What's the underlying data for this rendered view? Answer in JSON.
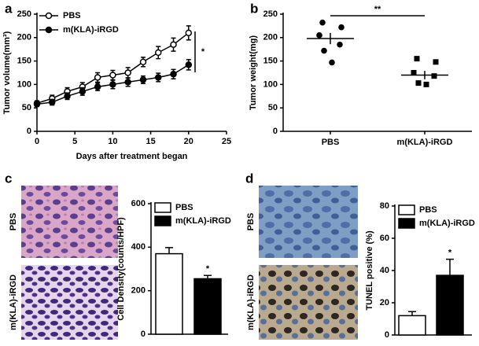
{
  "chart_data": [
    {
      "type": "line",
      "panel": "a",
      "xlabel": "Days after treatment began",
      "ylabel": "Tumor volume(mm³)",
      "x": [
        0,
        2,
        4,
        6,
        8,
        10,
        12,
        14,
        16,
        18,
        20
      ],
      "series": [
        {
          "name": "PBS",
          "color": "#000000",
          "marker": "open",
          "values": [
            60,
            70,
            85,
            95,
            115,
            120,
            125,
            148,
            168,
            185,
            210
          ],
          "errors": [
            5,
            7,
            8,
            9,
            10,
            10,
            11,
            10,
            13,
            14,
            15
          ]
        },
        {
          "name": "m(KLA)-iRGD",
          "color": "#000000",
          "marker": "filled",
          "values": [
            58,
            62,
            75,
            85,
            95,
            100,
            105,
            110,
            115,
            122,
            142
          ],
          "errors": [
            5,
            6,
            7,
            8,
            8,
            9,
            9,
            8,
            9,
            10,
            11
          ]
        }
      ],
      "xlim": [
        0,
        25
      ],
      "xticks": [
        0,
        5,
        10,
        15,
        20,
        25
      ],
      "ylim": [
        0,
        250
      ],
      "yticks": [
        0,
        50,
        100,
        150,
        200,
        250
      ],
      "annotation": "*"
    },
    {
      "type": "dot",
      "panel": "b",
      "ylabel": "Tumor weight(mg)",
      "categories": [
        "PBS",
        "m(KLA)-iRGD"
      ],
      "points": [
        [
          232,
          222,
          205,
          185,
          172,
          147
        ],
        [
          155,
          148,
          125,
          118,
          103,
          100
        ]
      ],
      "markers": [
        "circle",
        "square"
      ],
      "means": [
        198,
        120
      ],
      "errors": [
        12,
        9
      ],
      "ylim": [
        0,
        250
      ],
      "yticks": [
        0,
        50,
        100,
        150,
        200,
        250
      ],
      "annotation": "**"
    },
    {
      "type": "bar",
      "panel": "c",
      "ylabel": "Cell Density(counts/HPF)",
      "image_labels": [
        "PBS",
        "m(KLA)-iRGD"
      ],
      "series": [
        {
          "name": "PBS",
          "color": "#ffffff",
          "values": [
            370
          ],
          "errors": [
            28
          ]
        },
        {
          "name": "m(KLA)-iRGD",
          "color": "#000000",
          "values": [
            255
          ],
          "errors": [
            15
          ]
        }
      ],
      "ylim": [
        0,
        600
      ],
      "yticks": [
        0,
        200,
        400,
        600
      ],
      "annotation": "*"
    },
    {
      "type": "bar",
      "panel": "d",
      "ylabel": "TUNEL positive (%)",
      "image_labels": [
        "PBS",
        "m(KLA)-iRGD"
      ],
      "series": [
        {
          "name": "PBS",
          "color": "#ffffff",
          "values": [
            12
          ],
          "errors": [
            2.5
          ]
        },
        {
          "name": "m(KLA)-iRGD",
          "color": "#000000",
          "values": [
            37
          ],
          "errors": [
            10
          ]
        }
      ],
      "ylim": [
        0,
        80
      ],
      "yticks": [
        0,
        20,
        40,
        60,
        80
      ],
      "annotation": "*"
    }
  ]
}
